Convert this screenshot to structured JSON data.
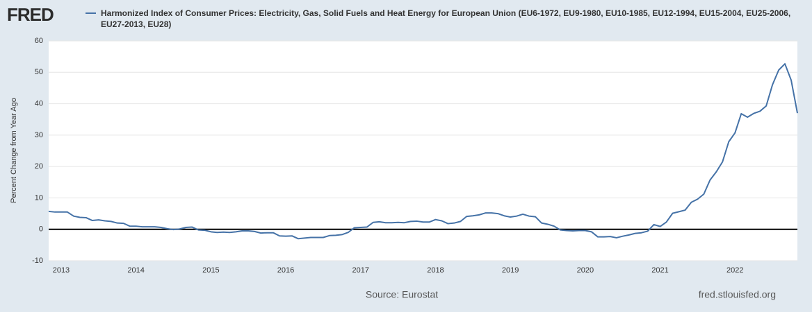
{
  "chart_data": {
    "type": "line",
    "logo": "FRED",
    "y_label": "Percent Change from Year Ago",
    "source": "Source: Eurostat",
    "site": "fred.stlouisfed.org",
    "categories": [
      null,
      null,
      "2013",
      null,
      null,
      null,
      null,
      null,
      null,
      null,
      null,
      null,
      null,
      null,
      "2014",
      null,
      null,
      null,
      null,
      null,
      null,
      null,
      null,
      null,
      null,
      null,
      "2015",
      null,
      null,
      null,
      null,
      null,
      null,
      null,
      null,
      null,
      null,
      null,
      "2016",
      null,
      null,
      null,
      null,
      null,
      null,
      null,
      null,
      null,
      null,
      null,
      "2017",
      null,
      null,
      null,
      null,
      null,
      null,
      null,
      null,
      null,
      null,
      null,
      "2018",
      null,
      null,
      null,
      null,
      null,
      null,
      null,
      null,
      null,
      null,
      null,
      "2019",
      null,
      null,
      null,
      null,
      null,
      null,
      null,
      null,
      null,
      null,
      null,
      "2020",
      null,
      null,
      null,
      null,
      null,
      null,
      null,
      null,
      null,
      null,
      null,
      "2021",
      null,
      null,
      null,
      null,
      null,
      null,
      null,
      null,
      null,
      null,
      null,
      "2022",
      null,
      null,
      null,
      null,
      null,
      null,
      null,
      null,
      null,
      null
    ],
    "series": [
      {
        "name": "Harmonized Index of Consumer Prices: Electricity, Gas, Solid Fuels and Heat Energy for European Union (EU6-1972, EU9-1980, EU10-1985, EU12-1994, EU15-2004, EU25-2006, EU27-2013, EU28)",
        "color": "#4572a7",
        "values": [
          5.7,
          5.5,
          5.5,
          5.5,
          4.2,
          3.8,
          3.7,
          2.8,
          3.0,
          2.7,
          2.5,
          2.0,
          1.9,
          1.0,
          1.0,
          0.8,
          0.8,
          0.8,
          0.6,
          0.2,
          -0.1,
          0.1,
          0.6,
          0.7,
          -0.2,
          -0.3,
          -0.8,
          -1.0,
          -0.9,
          -1.0,
          -0.8,
          -0.5,
          -0.5,
          -0.7,
          -1.2,
          -1.1,
          -1.1,
          -2.1,
          -2.2,
          -2.1,
          -3.0,
          -2.8,
          -2.6,
          -2.6,
          -2.6,
          -2.0,
          -1.9,
          -1.7,
          -1.0,
          0.5,
          0.6,
          0.7,
          2.2,
          2.4,
          2.1,
          2.1,
          2.2,
          2.1,
          2.5,
          2.6,
          2.3,
          2.3,
          3.1,
          2.7,
          1.8,
          2.0,
          2.5,
          4.1,
          4.3,
          4.6,
          5.2,
          5.2,
          5.0,
          4.3,
          3.9,
          4.2,
          4.8,
          4.2,
          4.0,
          2.0,
          1.6,
          1.0,
          -0.2,
          -0.4,
          -0.5,
          -0.4,
          -0.4,
          -0.8,
          -2.4,
          -2.4,
          -2.3,
          -2.7,
          -2.2,
          -1.8,
          -1.3,
          -1.1,
          -0.6,
          1.5,
          0.9,
          2.3,
          5.1,
          5.6,
          6.1,
          8.6,
          9.6,
          11.2,
          15.7,
          18.3,
          21.5,
          27.9,
          30.7,
          36.8,
          35.7,
          36.9,
          37.6,
          39.3,
          46.0,
          50.7,
          52.7,
          47.5,
          37.0
        ]
      }
    ],
    "ylim": [
      -10,
      60
    ],
    "yticks": [
      -10,
      0,
      10,
      20,
      30,
      40,
      50,
      60
    ],
    "grid": true
  }
}
